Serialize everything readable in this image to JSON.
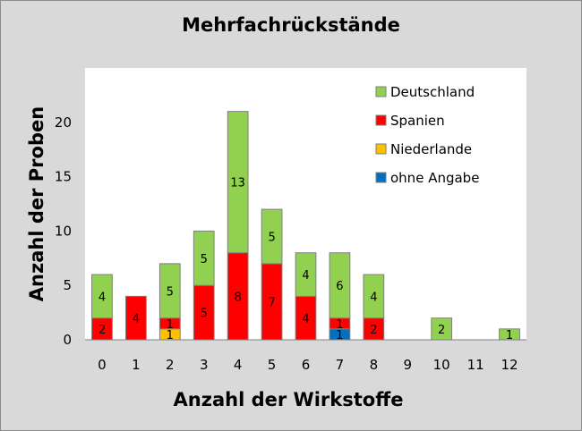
{
  "chart_data": {
    "type": "bar",
    "stacked": true,
    "title": "Mehrfachrückstände",
    "xlabel": "Anzahl der Wirkstoffe",
    "ylabel": "Anzahl der Proben",
    "categories": [
      "0",
      "1",
      "2",
      "3",
      "4",
      "5",
      "6",
      "7",
      "8",
      "9",
      "10",
      "11",
      "12"
    ],
    "ylim": [
      0,
      25
    ],
    "yticks": [
      0,
      5,
      10,
      15,
      20
    ],
    "grid": false,
    "legend_position": "top-right",
    "series": [
      {
        "name": "ohne Angabe",
        "color": "#0070c0",
        "values": [
          0,
          0,
          0,
          0,
          0,
          0,
          0,
          1,
          0,
          0,
          0,
          0,
          0
        ]
      },
      {
        "name": "Niederlande",
        "color": "#ffc000",
        "values": [
          0,
          0,
          1,
          0,
          0,
          0,
          0,
          0,
          0,
          0,
          0,
          0,
          0
        ]
      },
      {
        "name": "Spanien",
        "color": "#ff0000",
        "values": [
          2,
          4,
          1,
          5,
          8,
          7,
          4,
          1,
          2,
          0,
          0,
          0,
          0
        ]
      },
      {
        "name": "Deutschland",
        "color": "#92d050",
        "values": [
          4,
          0,
          5,
          5,
          13,
          5,
          4,
          6,
          4,
          0,
          2,
          0,
          1
        ]
      }
    ],
    "legend_order": [
      "Deutschland",
      "Spanien",
      "Niederlande",
      "ohne Angabe"
    ]
  }
}
